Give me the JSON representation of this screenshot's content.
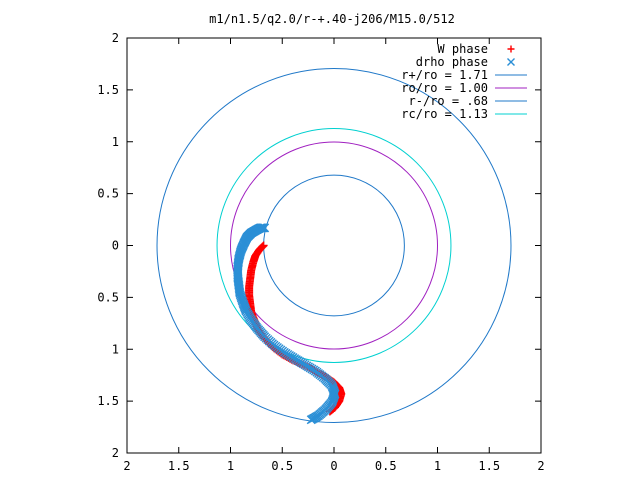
{
  "chart_data": {
    "type": "scatter",
    "title": "m1/n1.5/q2.0/r-+.40-j206/M15.0/512",
    "xlim": [
      -2,
      2
    ],
    "ylim": [
      -2,
      2
    ],
    "x_tick_labels": [
      "2",
      "1.5",
      "1",
      "0.5",
      "0",
      "0.5",
      "1",
      "1.5",
      "2"
    ],
    "y_tick_labels": [
      "2",
      "1.5",
      "1",
      "0.5",
      "0",
      "0.5",
      "1",
      "1.5",
      "2"
    ],
    "legend_position": "top-right",
    "grid": false,
    "series": [
      {
        "name": "W phase",
        "kind": "points",
        "marker": "plus",
        "color": "#ff0000",
        "points": [
          [
            -0.68,
            0.0
          ],
          [
            -0.72,
            -0.04
          ],
          [
            -0.76,
            -0.1
          ],
          [
            -0.78,
            -0.16
          ],
          [
            -0.8,
            -0.24
          ],
          [
            -0.81,
            -0.32
          ],
          [
            -0.82,
            -0.4
          ],
          [
            -0.82,
            -0.48
          ],
          [
            -0.81,
            -0.56
          ],
          [
            -0.8,
            -0.64
          ],
          [
            -0.77,
            -0.72
          ],
          [
            -0.74,
            -0.8
          ],
          [
            -0.7,
            -0.86
          ],
          [
            -0.64,
            -0.93
          ],
          [
            -0.58,
            -0.99
          ],
          [
            -0.5,
            -1.05
          ],
          [
            -0.41,
            -1.1
          ],
          [
            -0.32,
            -1.14
          ],
          [
            -0.22,
            -1.19
          ],
          [
            -0.13,
            -1.24
          ],
          [
            -0.06,
            -1.28
          ],
          [
            0.0,
            -1.32
          ],
          [
            0.05,
            -1.37
          ],
          [
            0.07,
            -1.43
          ],
          [
            0.05,
            -1.5
          ],
          [
            0.01,
            -1.56
          ],
          [
            -0.04,
            -1.6
          ]
        ]
      },
      {
        "name": "drho phase",
        "kind": "points",
        "marker": "cross",
        "color": "#2b8fd6",
        "points": [
          [
            -0.67,
            0.17
          ],
          [
            -0.71,
            0.17
          ],
          [
            -0.75,
            0.15
          ],
          [
            -0.8,
            0.12
          ],
          [
            -0.84,
            0.08
          ],
          [
            -0.87,
            0.02
          ],
          [
            -0.9,
            -0.05
          ],
          [
            -0.92,
            -0.13
          ],
          [
            -0.93,
            -0.21
          ],
          [
            -0.93,
            -0.3
          ],
          [
            -0.92,
            -0.38
          ],
          [
            -0.91,
            -0.46
          ],
          [
            -0.88,
            -0.55
          ],
          [
            -0.85,
            -0.63
          ],
          [
            -0.8,
            -0.72
          ],
          [
            -0.74,
            -0.8
          ],
          [
            -0.67,
            -0.88
          ],
          [
            -0.58,
            -0.96
          ],
          [
            -0.48,
            -1.03
          ],
          [
            -0.38,
            -1.09
          ],
          [
            -0.28,
            -1.15
          ],
          [
            -0.18,
            -1.21
          ],
          [
            -0.09,
            -1.28
          ],
          [
            -0.02,
            -1.35
          ],
          [
            0.01,
            -1.43
          ],
          [
            -0.02,
            -1.51
          ],
          [
            -0.08,
            -1.58
          ],
          [
            -0.15,
            -1.64
          ],
          [
            -0.22,
            -1.68
          ]
        ]
      },
      {
        "name": "r+/ro = 1.71",
        "kind": "circle",
        "radius": 1.71,
        "color": "#1f78c8"
      },
      {
        "name": "ro/ro = 1.00",
        "kind": "circle",
        "radius": 1.0,
        "color": "#a020c0"
      },
      {
        "name": "r-/ro = .68",
        "kind": "circle",
        "radius": 0.68,
        "color": "#1f78c8"
      },
      {
        "name": "rc/ro = 1.13",
        "kind": "circle",
        "radius": 1.13,
        "color": "#00d0d0"
      }
    ]
  }
}
